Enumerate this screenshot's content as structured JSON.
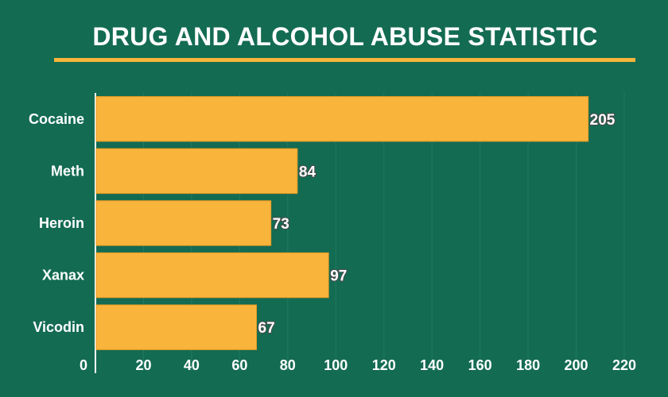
{
  "chart_data": {
    "type": "bar",
    "orientation": "horizontal",
    "title": "DRUG AND ALCOHOL ABUSE STATISTIC",
    "categories": [
      "Cocaine",
      "Meth",
      "Heroin",
      "Xanax",
      "Vicodin"
    ],
    "values": [
      205,
      84,
      73,
      97,
      67
    ],
    "xlim": [
      0,
      220
    ],
    "xticks": [
      "0",
      "20",
      "40",
      "60",
      "80",
      "100",
      "120",
      "140",
      "160",
      "180",
      "200",
      "220"
    ],
    "grid": true,
    "legend": "none"
  },
  "colors": {
    "background": "#136b52",
    "bar": "#f9b43c",
    "bar_border": "#e59a24",
    "title_underline": "#f5b43a",
    "grid": "#1f7a60",
    "text": "#ffffff"
  }
}
